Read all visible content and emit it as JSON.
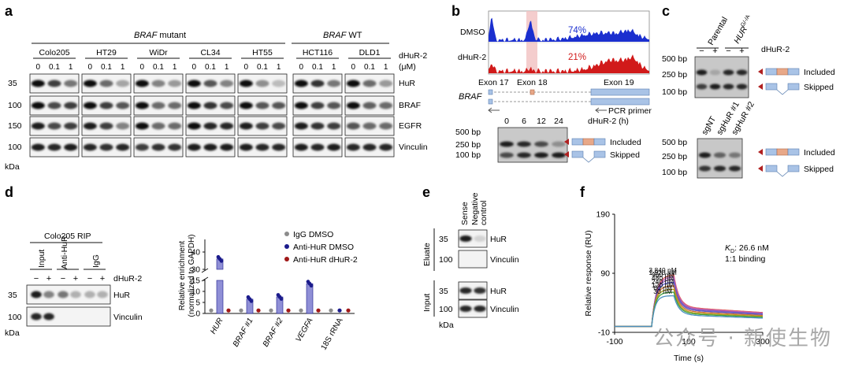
{
  "panel_a": {
    "letter": "a",
    "group_labels": [
      {
        "label": "BRAF",
        "suffix": " mutant"
      },
      {
        "label": "BRAF",
        "suffix": " WT"
      }
    ],
    "cell_lines": [
      "Colo205",
      "HT29",
      "WiDr",
      "CL34",
      "HT55",
      "HCT116",
      "DLD1"
    ],
    "doses": [
      "0",
      "0.1",
      "1"
    ],
    "treatment": "dHuR-2",
    "unit": "(μM)",
    "rows": [
      {
        "mw": "35",
        "protein": "HuR"
      },
      {
        "mw": "100",
        "protein": "BRAF"
      },
      {
        "mw": "150",
        "protein": "EGFR"
      },
      {
        "mw": "100",
        "protein": "Vinculin"
      }
    ],
    "kda": "kDa",
    "lanes": [
      [
        [
          1.0,
          0.8,
          0.55
        ],
        [
          1.0,
          0.75,
          0.8
        ],
        [
          0.95,
          0.75,
          0.8
        ],
        [
          0.95,
          0.9,
          0.95
        ]
      ],
      [
        [
          1.0,
          0.6,
          0.35
        ],
        [
          1.0,
          0.8,
          0.7
        ],
        [
          0.95,
          0.8,
          0.5
        ],
        [
          0.9,
          0.85,
          0.9
        ]
      ],
      [
        [
          1.0,
          0.5,
          0.4
        ],
        [
          1.0,
          0.6,
          0.6
        ],
        [
          1.0,
          0.6,
          0.6
        ],
        [
          0.8,
          0.85,
          0.85
        ]
      ],
      [
        [
          1.0,
          0.7,
          0.5
        ],
        [
          1.0,
          0.85,
          0.75
        ],
        [
          1.0,
          0.9,
          0.9
        ],
        [
          0.95,
          0.95,
          0.95
        ]
      ],
      [
        [
          1.0,
          0.45,
          0.25
        ],
        [
          1.0,
          0.7,
          0.7
        ],
        [
          0.95,
          0.8,
          0.75
        ],
        [
          0.95,
          0.9,
          0.9
        ]
      ],
      [
        [
          1.0,
          0.85,
          0.55
        ],
        [
          1.0,
          0.8,
          0.7
        ],
        [
          0.95,
          0.85,
          0.8
        ],
        [
          0.95,
          0.9,
          0.95
        ]
      ],
      [
        [
          1.0,
          0.6,
          0.4
        ],
        [
          1.0,
          0.65,
          0.6
        ],
        [
          0.7,
          0.6,
          0.6
        ],
        [
          0.9,
          0.9,
          0.9
        ]
      ]
    ]
  },
  "panel_b": {
    "letter": "b",
    "track_labels": [
      "DMSO",
      "dHuR-2"
    ],
    "track_values": [
      "74%",
      "21%"
    ],
    "track_colors": [
      "#1b2fcf",
      "#d11a1a"
    ],
    "exons": [
      "Exon 17",
      "Exon 18",
      "Exon 19"
    ],
    "gene": "BRAF",
    "primer_label": "PCR primer",
    "timepoints": [
      "0",
      "6",
      "12",
      "24"
    ],
    "time_label": "dHuR-2 (h)",
    "ladder": [
      "500 bp",
      "250 bp",
      "100 bp"
    ],
    "products": [
      "Included",
      "Skipped"
    ]
  },
  "panel_c": {
    "letter": "c",
    "top_headers": [
      "Parental",
      "HUR",
      "G/-/A"
    ],
    "signs": [
      "−",
      "+",
      "−",
      "+"
    ],
    "treatment": "dHuR-2",
    "ladder": [
      "500 bp",
      "250 bp",
      "100 bp"
    ],
    "products": [
      "Included",
      "Skipped"
    ],
    "bottom_headers": [
      "sgNT",
      "sgHuR #1",
      "sgHuR #2"
    ]
  },
  "panel_d": {
    "letter": "d",
    "rip_title": "Colo205 RIP",
    "rip_groups": [
      "Input",
      "Anti-HuR",
      "IgG"
    ],
    "signs": [
      "−",
      "+",
      "−",
      "+",
      "−",
      "+"
    ],
    "treatment": "dHuR-2",
    "rows": [
      {
        "mw": "35",
        "protein": "HuR"
      },
      {
        "mw": "100",
        "protein": "Vinculin"
      }
    ],
    "kda": "kDa"
  },
  "chart_data": [
    {
      "type": "bar",
      "ylabel": "Relative enrichment",
      "ylabel2": "(normalized to GAPDH)",
      "categories": [
        "HUR",
        "BRAF #1",
        "BRAF #2",
        "VEGFA",
        "18S rRNA"
      ],
      "series": [
        {
          "name": "IgG DMSO",
          "color": "#8c8c8c",
          "values": [
            1,
            1,
            1,
            1,
            1
          ]
        },
        {
          "name": "Anti-HuR DMSO",
          "color": "#1c1c8c",
          "values": [
            36,
            6.5,
            7.5,
            13.5,
            1
          ]
        },
        {
          "name": "Anti-HuR dHuR-2",
          "color": "#a01818",
          "values": [
            1,
            1,
            1,
            1,
            1
          ]
        }
      ],
      "yticks_lower": [
        0,
        5,
        10,
        15
      ],
      "yticks_upper": [
        30,
        40
      ],
      "axis_break": [
        15,
        30
      ]
    },
    {
      "type": "line",
      "ylabel": "Relative response (RU)",
      "xlabel": "Time (s)",
      "xlim": [
        -100,
        300
      ],
      "ylim": [
        -10,
        190
      ],
      "xticks": [
        -100,
        100,
        300
      ],
      "yticks": [
        -10,
        90,
        190
      ],
      "annotation": "K",
      "annotation_sub": "D",
      "annotation_value": ": 26.6 nM",
      "annotation2": "1:1 binding",
      "series": [
        {
          "name": "3,840 nM",
          "color": "#e06060",
          "plateau": 88
        },
        {
          "name": "1,920 nM",
          "color": "#c060c0",
          "plateau": 84
        },
        {
          "name": "960 nM",
          "color": "#8a5ab0",
          "plateau": 80
        },
        {
          "name": "480 nM",
          "color": "#5a5ad0",
          "plateau": 75
        },
        {
          "name": "240 nM",
          "color": "#d07030",
          "plateau": 69
        },
        {
          "name": "120 nM",
          "color": "#b0a020",
          "plateau": 63
        },
        {
          "name": "60 nM",
          "color": "#40a040",
          "plateau": 58
        },
        {
          "name": "30 nM",
          "color": "#4a90c0",
          "plateau": 52
        }
      ]
    }
  ],
  "panel_e": {
    "letter": "e",
    "headers": [
      "Sense",
      "Negative control"
    ],
    "sections": [
      "Eluate",
      "Input"
    ],
    "rows": [
      {
        "mw": "35",
        "protein": "HuR"
      },
      {
        "mw": "100",
        "protein": "Vinculin"
      },
      {
        "mw": "35",
        "protein": "HuR"
      },
      {
        "mw": "100",
        "protein": "Vinculin"
      }
    ],
    "kda": "kDa"
  },
  "panel_f": {
    "letter": "f"
  },
  "watermark": "公众号 · 新使生物"
}
